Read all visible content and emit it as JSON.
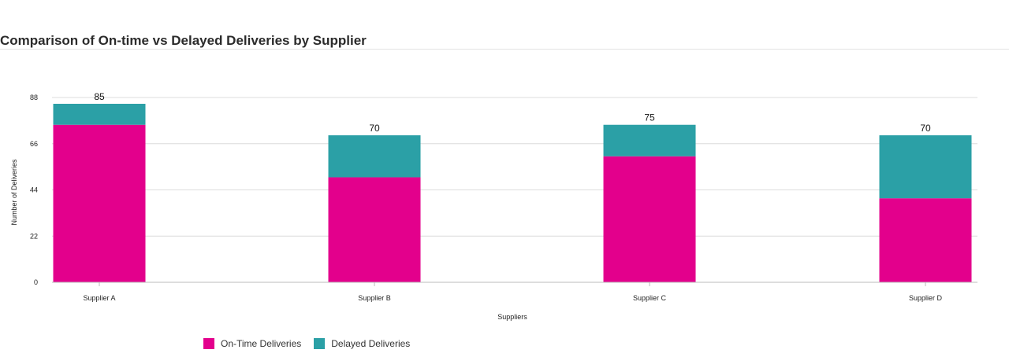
{
  "header": {
    "title": "Comparison of On-time vs Delayed Deliveries by Supplier"
  },
  "colors": {
    "on_time": "#e3008c",
    "delayed": "#2ba0a6",
    "grid": "#dcdcdc",
    "axis_text": "#222222"
  },
  "chart_data": {
    "type": "bar",
    "stacked": true,
    "title": "Comparison of On-time vs Delayed Deliveries by Supplier",
    "xlabel": "Suppliers",
    "ylabel": "Number of Deliveries",
    "categories": [
      "Supplier A",
      "Supplier B",
      "Supplier C",
      "Supplier D"
    ],
    "series": [
      {
        "name": "On-Time Deliveries",
        "values": [
          75,
          50,
          60,
          40
        ]
      },
      {
        "name": "Delayed Deliveries",
        "values": [
          10,
          20,
          15,
          30
        ]
      }
    ],
    "totals": [
      85,
      70,
      75,
      70
    ],
    "yticks": [
      0,
      22,
      44,
      66,
      88
    ],
    "ylim": [
      0,
      88
    ],
    "grid": true,
    "legend_position": "bottom-left"
  }
}
